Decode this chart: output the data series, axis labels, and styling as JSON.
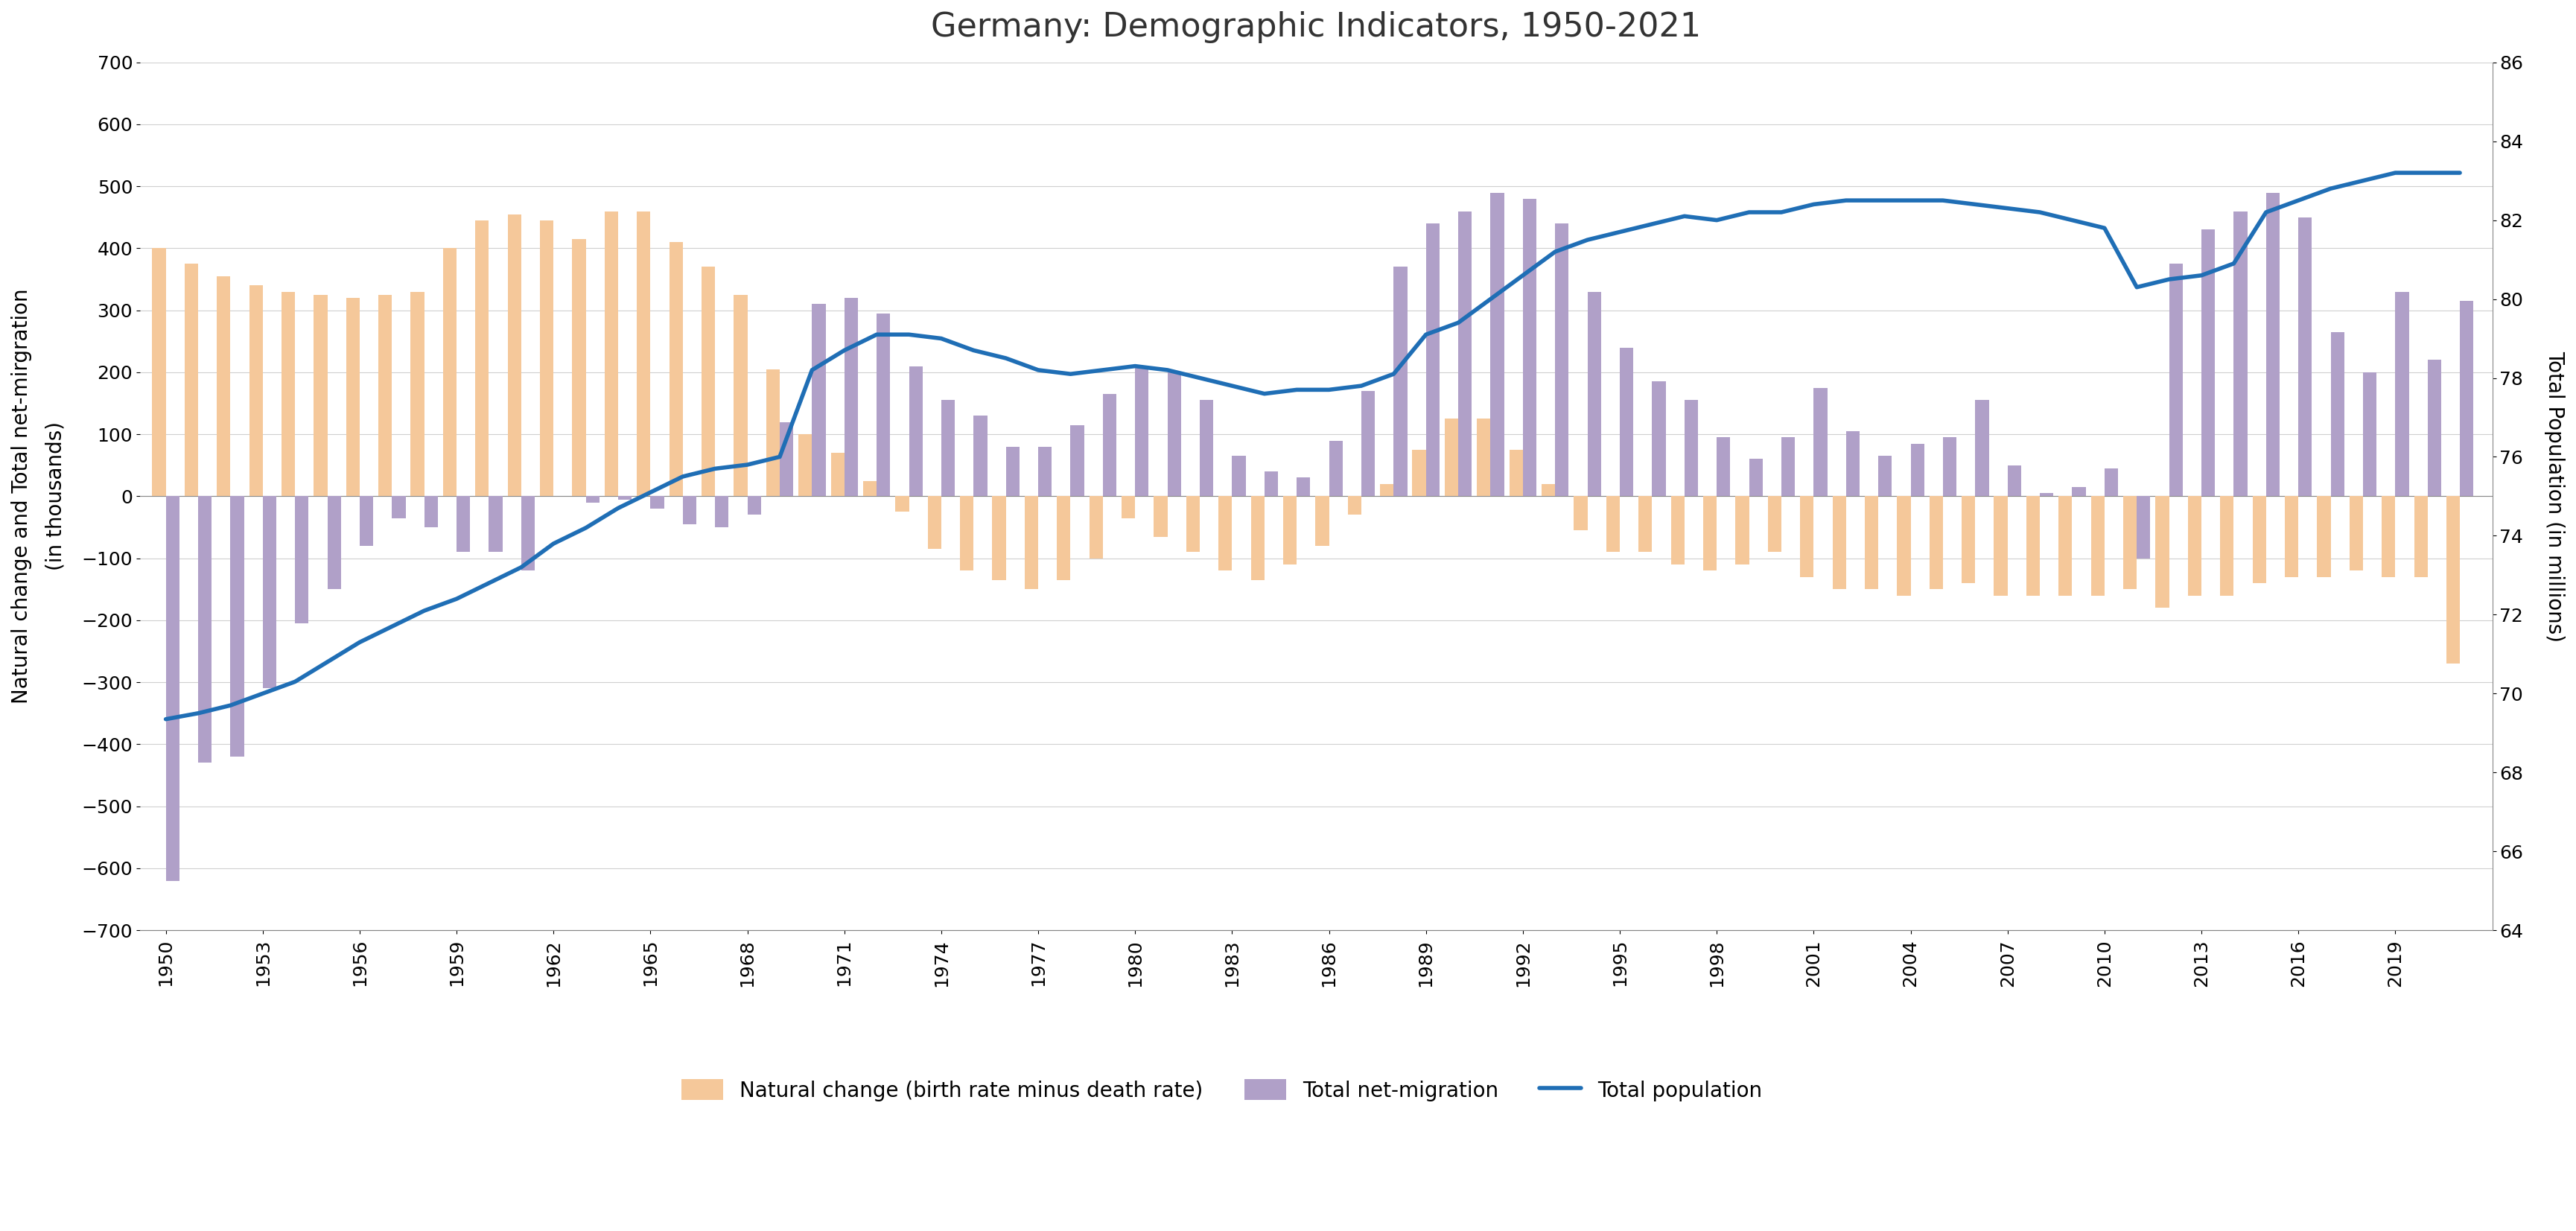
{
  "title": "Germany: Demographic Indicators, 1950-2021",
  "ylabel_left": "Natural change and Total net-mirgration\n(in thousands)",
  "ylabel_right": "Total Population (in millions)",
  "ylim_left": [
    -700,
    700
  ],
  "ylim_right": [
    64,
    86
  ],
  "yticks_left": [
    -700,
    -600,
    -500,
    -400,
    -300,
    -200,
    -100,
    0,
    100,
    200,
    300,
    400,
    500,
    600,
    700
  ],
  "yticks_right": [
    64,
    66,
    68,
    70,
    72,
    74,
    76,
    78,
    80,
    82,
    84,
    86
  ],
  "years": [
    1950,
    1951,
    1952,
    1953,
    1954,
    1955,
    1956,
    1957,
    1958,
    1959,
    1960,
    1961,
    1962,
    1963,
    1964,
    1965,
    1966,
    1967,
    1968,
    1969,
    1970,
    1971,
    1972,
    1973,
    1974,
    1975,
    1976,
    1977,
    1978,
    1979,
    1980,
    1981,
    1982,
    1983,
    1984,
    1985,
    1986,
    1987,
    1988,
    1989,
    1990,
    1991,
    1992,
    1993,
    1994,
    1995,
    1996,
    1997,
    1998,
    1999,
    2000,
    2001,
    2002,
    2003,
    2004,
    2005,
    2006,
    2007,
    2008,
    2009,
    2010,
    2011,
    2012,
    2013,
    2014,
    2015,
    2016,
    2017,
    2018,
    2019,
    2020,
    2021
  ],
  "natural_change": [
    400,
    375,
    355,
    340,
    330,
    325,
    320,
    325,
    330,
    400,
    445,
    455,
    445,
    415,
    460,
    460,
    410,
    370,
    325,
    205,
    100,
    70,
    25,
    -25,
    -85,
    -120,
    -135,
    -150,
    -135,
    -100,
    -35,
    -65,
    -90,
    -120,
    -135,
    -110,
    -80,
    -30,
    20,
    75,
    125,
    125,
    75,
    20,
    -55,
    -90,
    -90,
    -110,
    -120,
    -110,
    -90,
    -130,
    -150,
    -150,
    -160,
    -150,
    -140,
    -160,
    -160,
    -160,
    -160,
    -150,
    -180,
    -160,
    -160,
    -140,
    -130,
    -130,
    -120,
    -130,
    -130,
    -270
  ],
  "net_migration": [
    -620,
    -430,
    -420,
    -310,
    -205,
    -150,
    -80,
    -35,
    -50,
    -90,
    -90,
    -120,
    0,
    -10,
    -5,
    -20,
    -45,
    -50,
    -30,
    120,
    310,
    320,
    295,
    210,
    155,
    130,
    80,
    80,
    115,
    165,
    210,
    200,
    155,
    65,
    40,
    30,
    90,
    170,
    370,
    440,
    460,
    490,
    480,
    440,
    330,
    240,
    185,
    155,
    95,
    60,
    95,
    175,
    105,
    65,
    85,
    95,
    155,
    50,
    5,
    15,
    45,
    -100,
    375,
    430,
    460,
    490,
    450,
    265,
    200,
    330,
    220,
    315
  ],
  "total_population": [
    69.35,
    69.5,
    69.7,
    70.0,
    70.3,
    70.8,
    71.3,
    71.7,
    72.1,
    72.4,
    72.8,
    73.2,
    73.8,
    74.2,
    74.7,
    75.1,
    75.5,
    75.7,
    75.8,
    76.0,
    78.2,
    78.7,
    79.1,
    79.1,
    79.0,
    78.7,
    78.5,
    78.2,
    78.1,
    78.2,
    78.3,
    78.2,
    78.0,
    77.8,
    77.6,
    77.7,
    77.7,
    77.8,
    78.1,
    79.1,
    79.4,
    80.0,
    80.6,
    81.2,
    81.5,
    81.7,
    81.9,
    82.1,
    82.0,
    82.2,
    82.2,
    82.4,
    82.5,
    82.5,
    82.5,
    82.5,
    82.4,
    82.3,
    82.2,
    82.0,
    81.8,
    80.3,
    80.5,
    80.6,
    80.9,
    82.2,
    82.5,
    82.8,
    83.0,
    83.2,
    83.2,
    83.2
  ],
  "bar_color_natural": "#f5c89a",
  "bar_color_migration": "#b0a0c8",
  "line_color": "#1f6eb5",
  "legend_labels": [
    "Natural change (birth rate minus death rate)",
    "Total net-migration",
    "Total population"
  ],
  "background_color": "#ffffff",
  "grid_color": "#d0d0d0",
  "title_fontsize": 32,
  "axis_label_fontsize": 20,
  "tick_fontsize": 18,
  "legend_fontsize": 20
}
